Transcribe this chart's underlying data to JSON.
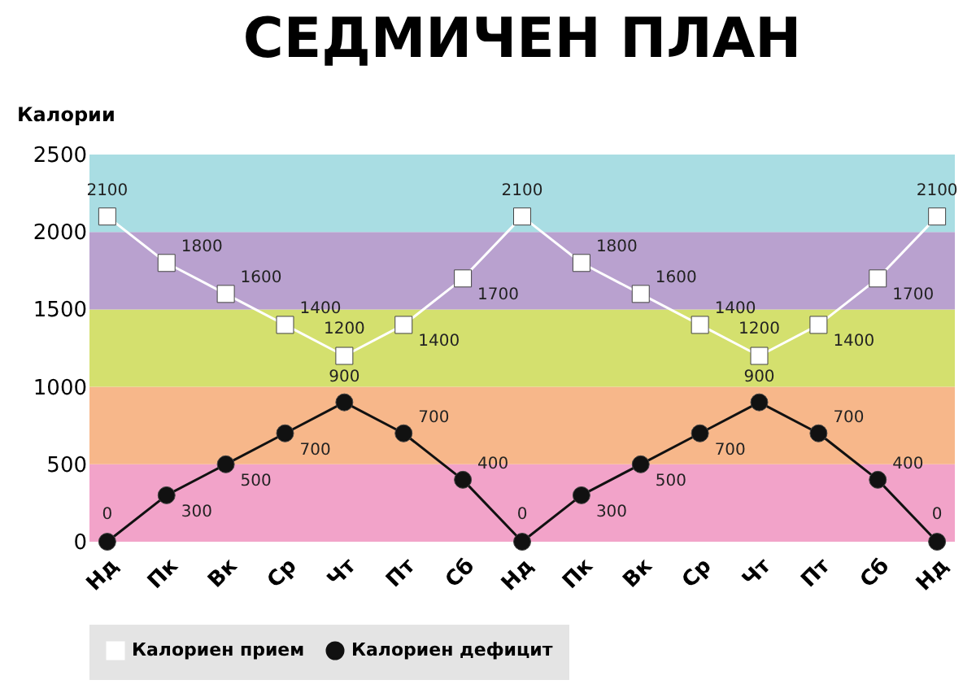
{
  "chart_data": {
    "type": "line",
    "title": "СЕДМИЧЕН ПЛАН",
    "ylabel": "Калории",
    "categories": [
      "Нд",
      "Пк",
      "Вк",
      "Ср",
      "Чт",
      "Пт",
      "Сб",
      "Нд",
      "Пк",
      "Вк",
      "Ср",
      "Чт",
      "Пт",
      "Сб",
      "Нд"
    ],
    "series": [
      {
        "name": "Калориен прием",
        "color": "#ffffff",
        "marker": "square",
        "values": [
          2100,
          1800,
          1600,
          1400,
          1200,
          1400,
          1700,
          2100,
          1800,
          1600,
          1400,
          1200,
          1400,
          1700,
          2100
        ]
      },
      {
        "name": "Калориен дефицит",
        "color": "#111111",
        "marker": "circle",
        "values": [
          0,
          300,
          500,
          700,
          900,
          700,
          400,
          0,
          300,
          500,
          700,
          900,
          700,
          400,
          0
        ]
      }
    ],
    "ylim": [
      0,
      2500
    ],
    "yticks": [
      0,
      500,
      1000,
      1500,
      2000,
      2500
    ],
    "bands": [
      {
        "axis": "y",
        "from": 0,
        "to": 500,
        "color": "#f2a3c9"
      },
      {
        "axis": "y",
        "from": 500,
        "to": 1000,
        "color": "#f7b78a"
      },
      {
        "axis": "y",
        "from": 1000,
        "to": 1500,
        "color": "#d4e06e"
      },
      {
        "axis": "y",
        "from": 1500,
        "to": 2000,
        "color": "#b9a1cf"
      },
      {
        "axis": "y",
        "from": 2000,
        "to": 2500,
        "color": "#a9dde3"
      }
    ],
    "data_labels": true,
    "grid": false,
    "legend": "bottom",
    "line_style": "solid"
  }
}
